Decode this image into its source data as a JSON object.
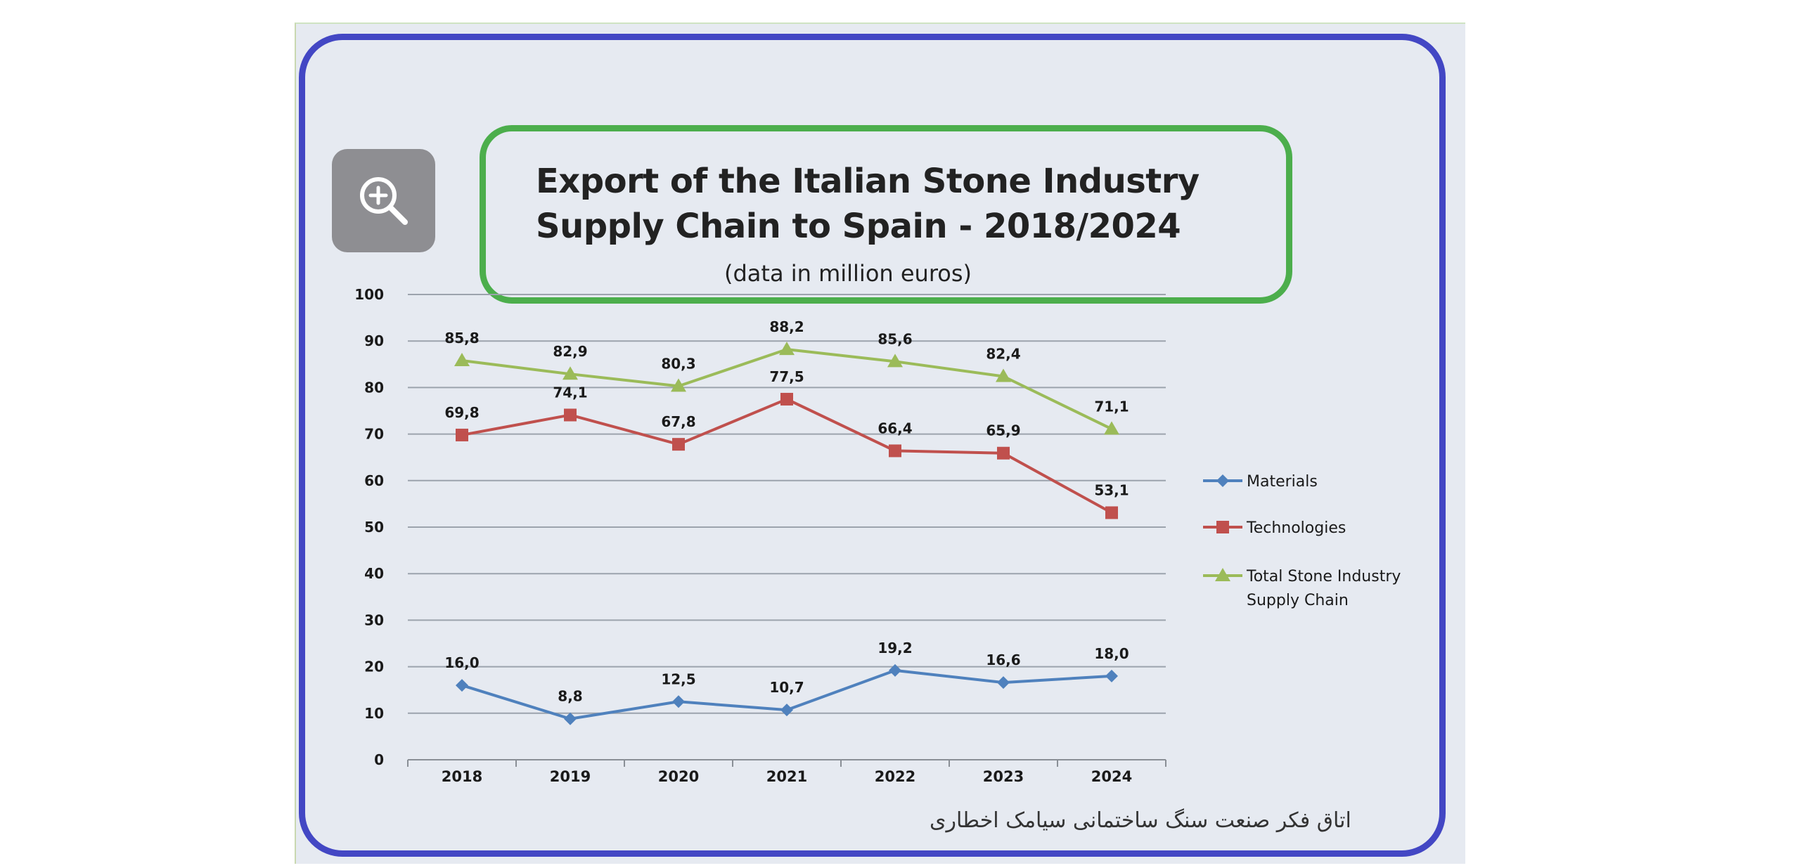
{
  "zoom": {
    "icon": "zoom-in-icon"
  },
  "chart_data": {
    "type": "line",
    "title_line_1": "Export of the Italian Stone Industry",
    "title_line_2": "Supply Chain to Spain - 2018/2024",
    "subtitle": "(data in million euros)",
    "xlabel": "",
    "ylabel": "",
    "categories": [
      "2018",
      "2019",
      "2020",
      "2021",
      "2022",
      "2023",
      "2024"
    ],
    "ylim": [
      0,
      100
    ],
    "y_ticks": [
      "0",
      "10",
      "20",
      "30",
      "40",
      "50",
      "60",
      "70",
      "80",
      "90",
      "100"
    ],
    "grid": true,
    "legend_position": "right",
    "series": [
      {
        "name": "Materials",
        "color": "#4f81bd",
        "marker": "diamond",
        "values": [
          16.0,
          8.8,
          12.5,
          10.7,
          19.2,
          16.6,
          18.0
        ],
        "labels": [
          "16,0",
          "8,8",
          "12,5",
          "10,7",
          "19,2",
          "16,6",
          "18,0"
        ]
      },
      {
        "name": "Technologies",
        "color": "#c0504d",
        "marker": "square",
        "values": [
          69.8,
          74.1,
          67.8,
          77.5,
          66.4,
          65.9,
          53.1
        ],
        "labels": [
          "69,8",
          "74,1",
          "67,8",
          "77,5",
          "66,4",
          "65,9",
          "53,1"
        ]
      },
      {
        "name": "Total Stone Industry Supply Chain",
        "name_lines": [
          "Total Stone Industry",
          "Supply Chain"
        ],
        "color": "#9bbb59",
        "marker": "triangle",
        "values": [
          85.8,
          82.9,
          80.3,
          88.2,
          85.6,
          82.4,
          71.1
        ],
        "labels": [
          "85,8",
          "82,9",
          "80,3",
          "88,2",
          "85,6",
          "82,4",
          "71,1"
        ]
      }
    ]
  },
  "watermark": "اتاق فکر صنعت سنگ ساختمانی سیامک اخطاری"
}
